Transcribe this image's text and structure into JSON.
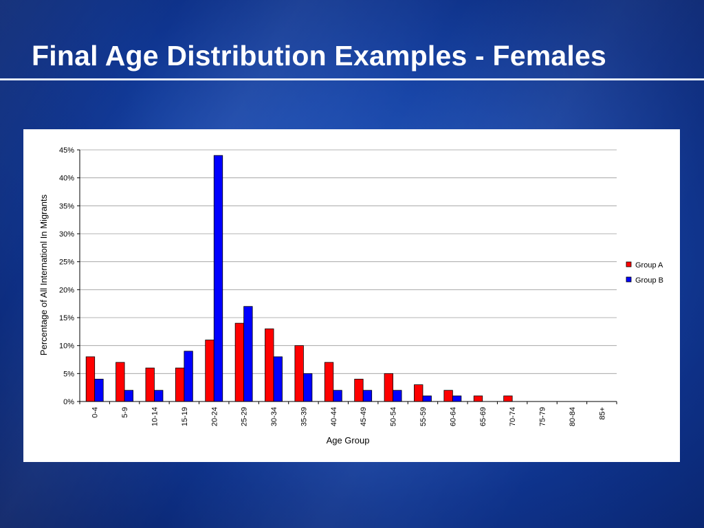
{
  "slide": {
    "title": "Final Age Distribution Examples - Females"
  },
  "chart_data": {
    "type": "bar",
    "title": "",
    "xlabel": "Age Group",
    "ylabel": "Percentage of All Internationl In Migrants",
    "ylim": [
      0,
      45
    ],
    "y_ticks": [
      0,
      5,
      10,
      15,
      20,
      25,
      30,
      35,
      40,
      45
    ],
    "y_tick_format": "%",
    "grid": true,
    "legend": "right",
    "categories": [
      "0-4",
      "5-9",
      "10-14",
      "15-19",
      "20-24",
      "25-29",
      "30-34",
      "35-39",
      "40-44",
      "45-49",
      "50-54",
      "55-59",
      "60-64",
      "65-69",
      "70-74",
      "75-79",
      "80-84",
      "85+"
    ],
    "series": [
      {
        "name": "Group A",
        "color": "#ff0000",
        "values": [
          8,
          7,
          6,
          6,
          11,
          14,
          13,
          10,
          7,
          4,
          5,
          3,
          2,
          1,
          1,
          0,
          0,
          0
        ]
      },
      {
        "name": "Group B",
        "color": "#0000ff",
        "values": [
          4,
          2,
          2,
          9,
          44,
          17,
          8,
          5,
          2,
          2,
          2,
          1,
          1,
          0,
          0,
          0,
          0,
          0
        ]
      }
    ]
  }
}
